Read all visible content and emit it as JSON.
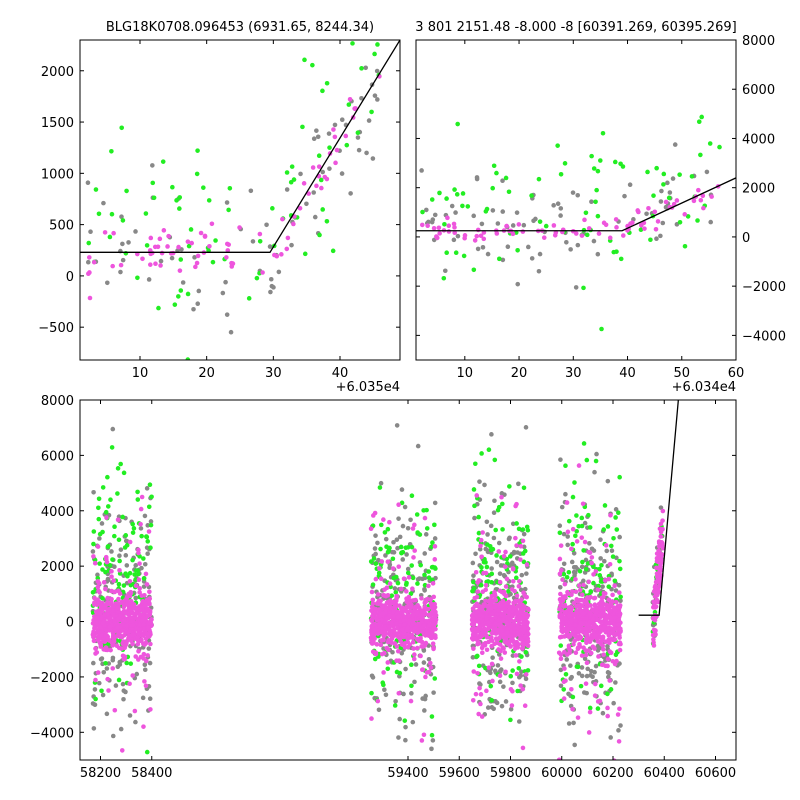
{
  "colors": {
    "grey": "#888888",
    "green": "#22ee22",
    "magenta": "#ee55dd",
    "model": "#000000"
  },
  "chart_data": [
    {
      "type": "scatter",
      "title": "BLG18K0708.096453 (6931.65, 8244.34)",
      "x_offset_label": "+6.035e4",
      "xlim": [
        1,
        49
      ],
      "ylim": [
        -820,
        2300
      ],
      "xticks": [
        10,
        20,
        30,
        40
      ],
      "yticks": [
        -500,
        0,
        500,
        1000,
        1500,
        2000
      ],
      "model_line": {
        "x": [
          1,
          29.5,
          49
        ],
        "y": [
          230,
          230,
          2300
        ]
      },
      "series_colors": [
        "grey",
        "green",
        "magenta"
      ]
    },
    {
      "type": "scatter",
      "title": "3 801 2151.48 -8.000 -8 [60391.269, 60395.269]",
      "x_offset_label": "+6.034e4",
      "xlim": [
        1,
        60
      ],
      "ylim": [
        -5000,
        8000
      ],
      "xticks": [
        10,
        20,
        30,
        40,
        50,
        60
      ],
      "yticks": [
        -4000,
        -2000,
        0,
        2000,
        4000,
        6000,
        8000
      ],
      "y_axis_side": "right",
      "model_line": {
        "x": [
          1,
          39,
          60
        ],
        "y": [
          250,
          250,
          2400
        ]
      },
      "series_colors": [
        "grey",
        "green",
        "magenta"
      ]
    },
    {
      "type": "scatter",
      "xlim": [
        58120,
        60680
      ],
      "ylim": [
        -5000,
        8000
      ],
      "xticks": [
        58200,
        58400,
        59400,
        59600,
        59800,
        60000,
        60200,
        60400,
        60600
      ],
      "yticks": [
        -4000,
        -2000,
        0,
        2000,
        4000,
        6000,
        8000
      ],
      "seasons": [
        [
          58170,
          58400
        ],
        [
          59255,
          59510
        ],
        [
          59650,
          59870
        ],
        [
          59990,
          60230
        ],
        [
          60355,
          60395
        ]
      ],
      "model_line": {
        "x": [
          60300,
          60380,
          60455
        ],
        "y": [
          230,
          230,
          8000
        ]
      },
      "series_colors": [
        "grey",
        "green",
        "magenta"
      ]
    }
  ]
}
